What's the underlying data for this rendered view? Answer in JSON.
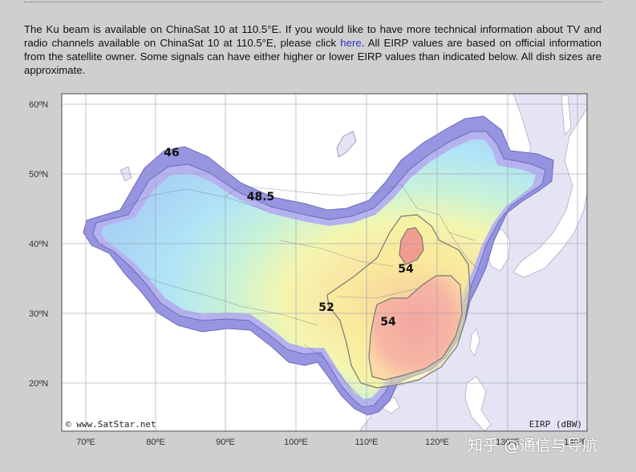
{
  "intro": {
    "text_before_link": "The Ku beam is available on ChinaSat 10 at 110.5°E. If you would like to have more technical information about TV and radio channels available on ChinaSat 10 at 110.5°E, please click ",
    "link_text": "here",
    "text_after_link": ". All EIRP values are based on official information from the satellite owner. Some signals can have either higher or lower EIRP values than indicated below. All dish sizes are approximate."
  },
  "map": {
    "lat_labels": [
      "60ºN",
      "50ºN",
      "40ºN",
      "30ºN",
      "20ºN"
    ],
    "lon_labels": [
      "70ºE",
      "80ºE",
      "90ºE",
      "100ºE",
      "110ºE",
      "120ºE",
      "130ºE",
      "140ºE"
    ],
    "contour_labels": [
      "46",
      "48.5",
      "54",
      "52",
      "54"
    ],
    "copyright": "© www.SatStar.net",
    "unit_label": "EIRP (dBW)"
  },
  "watermark": "知乎 @通信与导航",
  "colors": {
    "background": "#cfcfcf",
    "link": "#2e36c8",
    "land": "#ffffff",
    "sea": "#e4e4f5",
    "outer_beam": "#8c88dd",
    "core": "#ec8b8b"
  }
}
